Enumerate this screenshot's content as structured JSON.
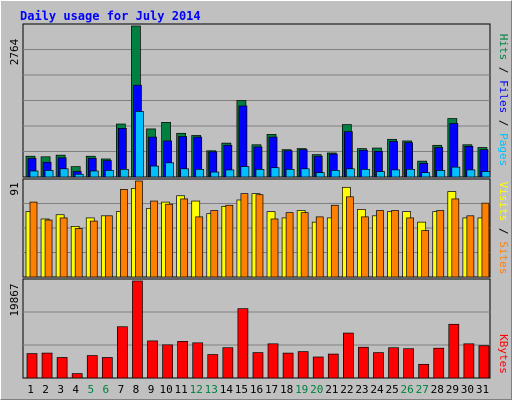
{
  "chart_data": [
    {
      "type": "bar",
      "title": "Daily usage for July 2014",
      "max_label": "2764",
      "categories": [
        "1",
        "2",
        "3",
        "4",
        "5",
        "6",
        "7",
        "8",
        "9",
        "10",
        "11",
        "12",
        "13",
        "14",
        "15",
        "16",
        "17",
        "18",
        "19",
        "20",
        "21",
        "22",
        "23",
        "24",
        "25",
        "26",
        "27",
        "28",
        "29",
        "30",
        "31"
      ],
      "weekend_days": [
        "5",
        "6",
        "12",
        "13",
        "19",
        "20",
        "26",
        "27"
      ],
      "legend": [
        "Pages",
        "Files",
        "Hits"
      ],
      "colors": {
        "Hits": "#008040",
        "Files": "#0000ff",
        "Pages": "#00c0ff"
      },
      "series": [
        {
          "name": "Hits",
          "values": [
            380,
            370,
            400,
            190,
            380,
            330,
            970,
            2764,
            880,
            1000,
            800,
            760,
            480,
            620,
            1400,
            590,
            780,
            500,
            520,
            410,
            440,
            960,
            520,
            530,
            690,
            660,
            290,
            580,
            1070,
            590,
            540
          ]
        },
        {
          "name": "Files",
          "values": [
            340,
            270,
            350,
            100,
            340,
            300,
            890,
            1680,
            730,
            660,
            740,
            730,
            460,
            580,
            1300,
            550,
            730,
            480,
            500,
            380,
            420,
            830,
            490,
            470,
            650,
            630,
            250,
            540,
            980,
            560,
            500
          ]
        },
        {
          "name": "Pages",
          "values": [
            110,
            120,
            150,
            50,
            110,
            120,
            140,
            1200,
            200,
            260,
            150,
            140,
            90,
            130,
            190,
            140,
            170,
            140,
            150,
            80,
            120,
            150,
            140,
            100,
            130,
            140,
            80,
            120,
            180,
            130,
            100
          ]
        }
      ]
    },
    {
      "type": "bar",
      "max_label": "91",
      "legend": [
        "Sites",
        "Visits"
      ],
      "colors": {
        "Visits": "#ffff00",
        "Sites": "#ff8000"
      },
      "series": [
        {
          "name": "Visits",
          "values": [
            62,
            55,
            59,
            48,
            56,
            58,
            62,
            84,
            65,
            71,
            77,
            72,
            60,
            67,
            73,
            79,
            62,
            56,
            63,
            52,
            56,
            85,
            64,
            58,
            62,
            62,
            52,
            62,
            81,
            56,
            56
          ]
        },
        {
          "name": "Sites",
          "values": [
            71,
            54,
            56,
            46,
            53,
            58,
            83,
            91,
            72,
            69,
            74,
            57,
            63,
            68,
            79,
            78,
            55,
            61,
            61,
            57,
            68,
            76,
            57,
            63,
            63,
            56,
            44,
            63,
            74,
            58,
            70
          ]
        }
      ]
    },
    {
      "type": "bar",
      "max_label": "19867",
      "legend": [
        "KBytes"
      ],
      "colors": {
        "KBytes": "#ff0000"
      },
      "series": [
        {
          "name": "KBytes",
          "values": [
            5000,
            5100,
            4200,
            900,
            4600,
            4200,
            10500,
            19867,
            7600,
            6800,
            7500,
            7200,
            4800,
            6200,
            14200,
            5200,
            7000,
            5100,
            5400,
            4300,
            4900,
            9200,
            6300,
            5200,
            6200,
            6000,
            2800,
            6100,
            11000,
            7000,
            6600
          ]
        }
      ]
    }
  ]
}
